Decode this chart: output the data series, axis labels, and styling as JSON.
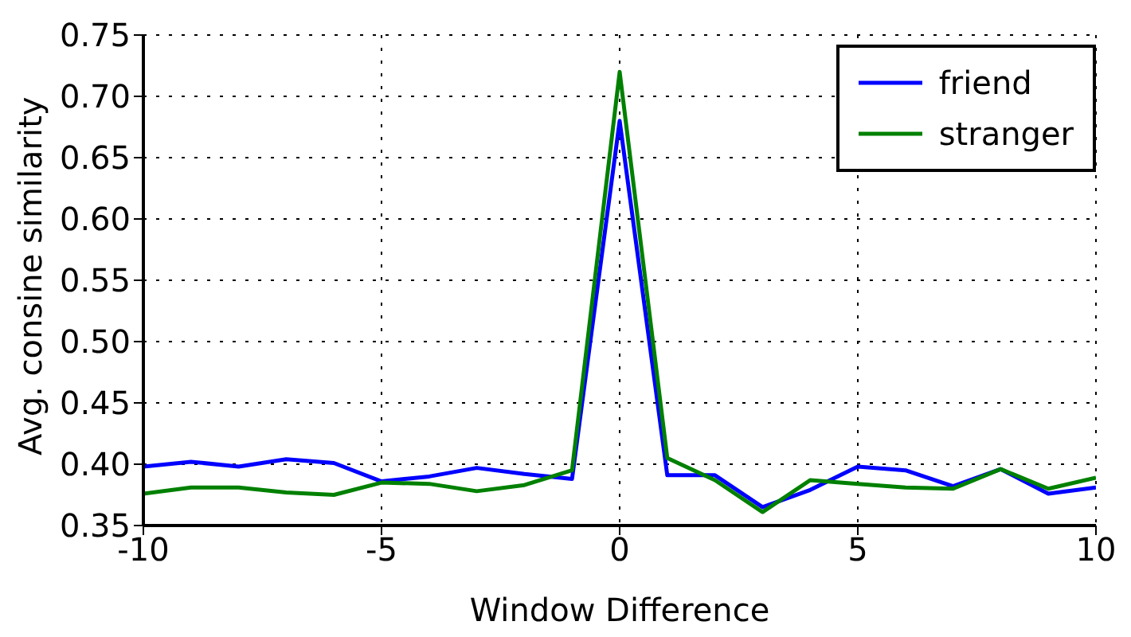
{
  "chart_data": {
    "type": "line",
    "xlabel": "Window Difference",
    "ylabel": "Avg. consine similarity",
    "x": [
      -10,
      -9,
      -8,
      -7,
      -6,
      -5,
      -4,
      -3,
      -2,
      -1,
      0,
      1,
      2,
      3,
      4,
      5,
      6,
      7,
      8,
      9,
      10
    ],
    "series": [
      {
        "name": "friend",
        "color": "#0000ff",
        "values": [
          0.398,
          0.402,
          0.398,
          0.404,
          0.401,
          0.386,
          0.39,
          0.397,
          0.392,
          0.388,
          0.68,
          0.391,
          0.391,
          0.365,
          0.379,
          0.398,
          0.395,
          0.382,
          0.396,
          0.376,
          0.381
        ]
      },
      {
        "name": "stranger",
        "color": "#008000",
        "values": [
          0.376,
          0.381,
          0.381,
          0.377,
          0.375,
          0.385,
          0.384,
          0.378,
          0.383,
          0.395,
          0.72,
          0.405,
          0.387,
          0.361,
          0.387,
          0.384,
          0.381,
          0.38,
          0.396,
          0.38,
          0.389
        ]
      }
    ],
    "xlim": [
      -10,
      10
    ],
    "xticks": [
      -10,
      -5,
      0,
      5,
      10
    ],
    "ylim": [
      0.35,
      0.75
    ],
    "yticks": [
      0.35,
      {
        "value": 0.4,
        "label": "0.40"
      },
      0.45,
      {
        "value": 0.5,
        "label": "0.50"
      },
      0.55,
      {
        "value": 0.6,
        "label": "0.60"
      },
      0.65,
      {
        "value": 0.7,
        "label": "0.70"
      },
      0.75
    ],
    "grid": true,
    "legend": "top right",
    "marker": "none",
    "line_style": "solid"
  }
}
